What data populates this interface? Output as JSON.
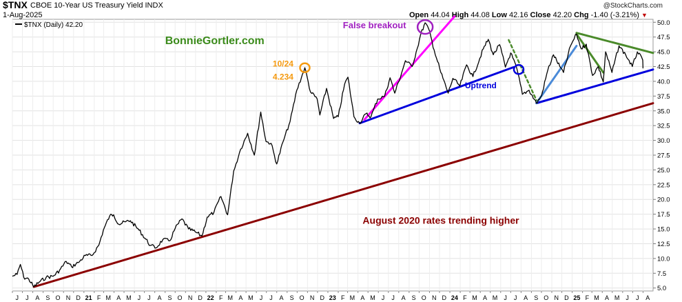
{
  "header": {
    "symbol": "$TNX",
    "description": "CBOE 10-Year US Treasury Yield INDX",
    "date": "1-Aug-2025",
    "credit": "@StockCharts.com",
    "ohlc": {
      "open_label": "Open",
      "open": "44.04",
      "high_label": "High",
      "high": "44.08",
      "low_label": "Low",
      "low": "42.16",
      "close_label": "Close",
      "close": "42.20",
      "chg_label": "Chg",
      "chg": "-1.40 (-3.21%)"
    }
  },
  "legend": {
    "label": "$TNX (Daily) 42.20"
  },
  "colors": {
    "price": "#000000",
    "red_trend": "#8b0000",
    "blue_trend": "#0000dd",
    "magenta_trend": "#ff00ff",
    "green_trend": "#4a8a2a",
    "light_blue_trend": "#4a8ad8",
    "orange": "#f59a10",
    "purple": "#a020c0",
    "watermark": "#3a8a1a"
  },
  "chart_data": {
    "type": "line",
    "title": "$TNX CBOE 10-Year US Treasury Yield INDX",
    "ylim": [
      4.5,
      50.5
    ],
    "y_ticks": [
      5.0,
      7.5,
      10.0,
      12.5,
      15.0,
      17.5,
      20.0,
      22.5,
      25.0,
      27.5,
      30.0,
      32.5,
      35.0,
      37.5,
      40.0,
      42.5,
      45.0,
      47.5,
      50.0
    ],
    "y_tick_labels": [
      "5.0",
      "7.5",
      "10.0",
      "12.5",
      "15.0",
      "17.5",
      "20.0",
      "22.5",
      "25.0",
      "27.5",
      "30.0",
      "32.5",
      "35.0",
      "37.5",
      "40.0",
      "42.5",
      "45.0",
      "47.5",
      "50.0"
    ],
    "x_tick_labels": [
      "J",
      "J",
      "A",
      "S",
      "O",
      "N",
      "D",
      "21",
      "F",
      "M",
      "A",
      "M",
      "J",
      "J",
      "A",
      "S",
      "O",
      "N",
      "D",
      "22",
      "F",
      "M",
      "A",
      "M",
      "J",
      "J",
      "A",
      "S",
      "O",
      "N",
      "D",
      "23",
      "F",
      "M",
      "A",
      "M",
      "J",
      "J",
      "A",
      "S",
      "O",
      "N",
      "D",
      "24",
      "F",
      "M",
      "A",
      "M",
      "J",
      "J",
      "A",
      "S",
      "O",
      "N",
      "D",
      "25",
      "F",
      "M",
      "A",
      "M",
      "J",
      "J",
      "A"
    ],
    "x_start": "2020-06-01",
    "x_end": "2025-08-31",
    "series": [
      {
        "name": "$TNX (Daily)",
        "points": [
          [
            "2020-06-01",
            7.0
          ],
          [
            "2020-06-15",
            7.3
          ],
          [
            "2020-06-25",
            9.0
          ],
          [
            "2020-07-05",
            6.8
          ],
          [
            "2020-07-20",
            6.5
          ],
          [
            "2020-08-04",
            5.2
          ],
          [
            "2020-08-20",
            6.0
          ],
          [
            "2020-09-10",
            6.8
          ],
          [
            "2020-10-01",
            7.0
          ],
          [
            "2020-10-20",
            8.0
          ],
          [
            "2020-11-09",
            9.5
          ],
          [
            "2020-11-25",
            8.6
          ],
          [
            "2020-12-15",
            9.3
          ],
          [
            "2021-01-05",
            10.5
          ],
          [
            "2021-01-25",
            10.5
          ],
          [
            "2021-02-15",
            12.3
          ],
          [
            "2021-02-28",
            14.8
          ],
          [
            "2021-03-19",
            17.2
          ],
          [
            "2021-03-31",
            17.4
          ],
          [
            "2021-04-15",
            15.8
          ],
          [
            "2021-05-05",
            16.2
          ],
          [
            "2021-05-20",
            16.4
          ],
          [
            "2021-06-15",
            14.8
          ],
          [
            "2021-07-19",
            12.2
          ],
          [
            "2021-08-05",
            11.8
          ],
          [
            "2021-08-25",
            13.2
          ],
          [
            "2021-09-15",
            13.0
          ],
          [
            "2021-10-01",
            15.1
          ],
          [
            "2021-10-21",
            16.7
          ],
          [
            "2021-11-10",
            15.0
          ],
          [
            "2021-11-30",
            14.5
          ],
          [
            "2021-12-20",
            13.8
          ],
          [
            "2022-01-05",
            17.0
          ],
          [
            "2022-01-25",
            17.8
          ],
          [
            "2022-02-15",
            20.5
          ],
          [
            "2022-03-07",
            17.4
          ],
          [
            "2022-03-25",
            24.8
          ],
          [
            "2022-04-15",
            28.5
          ],
          [
            "2022-05-06",
            31.2
          ],
          [
            "2022-05-26",
            27.5
          ],
          [
            "2022-06-14",
            34.8
          ],
          [
            "2022-06-30",
            29.8
          ],
          [
            "2022-07-15",
            29.5
          ],
          [
            "2022-08-01",
            26.0
          ],
          [
            "2022-08-20",
            29.8
          ],
          [
            "2022-09-10",
            33.2
          ],
          [
            "2022-09-30",
            38.5
          ],
          [
            "2022-10-24",
            42.3
          ],
          [
            "2022-11-10",
            38.2
          ],
          [
            "2022-11-30",
            37.0
          ],
          [
            "2022-12-08",
            34.3
          ],
          [
            "2022-12-28",
            38.8
          ],
          [
            "2023-01-18",
            33.7
          ],
          [
            "2023-02-01",
            34.0
          ],
          [
            "2023-02-20",
            39.5
          ],
          [
            "2023-03-02",
            40.7
          ],
          [
            "2023-03-20",
            34.0
          ],
          [
            "2023-04-06",
            32.9
          ],
          [
            "2023-04-25",
            34.5
          ],
          [
            "2023-05-10",
            34.0
          ],
          [
            "2023-05-30",
            37.0
          ],
          [
            "2023-06-20",
            37.5
          ],
          [
            "2023-07-06",
            40.6
          ],
          [
            "2023-07-20",
            38.0
          ],
          [
            "2023-08-10",
            41.5
          ],
          [
            "2023-08-21",
            43.5
          ],
          [
            "2023-09-10",
            42.5
          ],
          [
            "2023-09-25",
            45.5
          ],
          [
            "2023-10-06",
            48.0
          ],
          [
            "2023-10-19",
            49.9
          ],
          [
            "2023-10-30",
            48.8
          ],
          [
            "2023-11-15",
            45.3
          ],
          [
            "2023-12-05",
            41.5
          ],
          [
            "2023-12-27",
            38.0
          ],
          [
            "2024-01-10",
            40.5
          ],
          [
            "2024-01-31",
            39.2
          ],
          [
            "2024-02-20",
            42.8
          ],
          [
            "2024-03-10",
            40.8
          ],
          [
            "2024-04-10",
            45.5
          ],
          [
            "2024-04-25",
            47.1
          ],
          [
            "2024-05-10",
            44.5
          ],
          [
            "2024-05-29",
            46.2
          ],
          [
            "2024-06-15",
            42.4
          ],
          [
            "2024-07-01",
            44.8
          ],
          [
            "2024-07-20",
            42.0
          ],
          [
            "2024-08-05",
            37.8
          ],
          [
            "2024-08-25",
            38.5
          ],
          [
            "2024-09-16",
            36.3
          ],
          [
            "2024-10-01",
            37.5
          ],
          [
            "2024-10-20",
            41.9
          ],
          [
            "2024-11-06",
            44.5
          ],
          [
            "2024-11-25",
            42.5
          ],
          [
            "2024-12-06",
            41.5
          ],
          [
            "2024-12-27",
            46.0
          ],
          [
            "2025-01-14",
            48.0
          ],
          [
            "2025-01-28",
            45.5
          ],
          [
            "2025-02-12",
            46.3
          ],
          [
            "2025-03-03",
            41.0
          ],
          [
            "2025-03-20",
            42.5
          ],
          [
            "2025-04-04",
            39.9
          ],
          [
            "2025-04-11",
            45.0
          ],
          [
            "2025-04-30",
            41.5
          ],
          [
            "2025-05-21",
            46.0
          ],
          [
            "2025-06-10",
            44.5
          ],
          [
            "2025-06-30",
            42.5
          ],
          [
            "2025-07-15",
            45.0
          ],
          [
            "2025-07-31",
            43.6
          ],
          [
            "2025-08-01",
            42.2
          ]
        ]
      }
    ],
    "trendlines": [
      {
        "name": "august-2020-uptrend",
        "color": "#8b0000",
        "start": [
          "2020-08-04",
          5.2
        ],
        "end": [
          "2025-08-31",
          36.3
        ]
      },
      {
        "name": "uptrend-2023",
        "color": "#0000dd",
        "start": [
          "2023-04-06",
          32.9
        ],
        "end": [
          "2024-07-10",
          42.4
        ]
      },
      {
        "name": "uptrend-2024",
        "color": "#0000dd",
        "start": [
          "2024-09-16",
          36.3
        ],
        "end": [
          "2025-08-31",
          42.0
        ]
      },
      {
        "name": "false-breakout-line",
        "color": "#ff00ff",
        "start": [
          "2023-04-20",
          33.5
        ],
        "end": [
          "2024-01-15",
          51.0
        ]
      },
      {
        "name": "green-resistance",
        "color": "#4a8a2a",
        "start": [
          "2025-01-14",
          48.2
        ],
        "end": [
          "2025-08-31",
          44.8
        ]
      },
      {
        "name": "green-channel",
        "color": "#4a8a2a",
        "start": [
          "2025-01-14",
          48.0
        ],
        "end": [
          "2025-04-04",
          41.5
        ]
      },
      {
        "name": "light-blue-rise",
        "color": "#4a8ad8",
        "start": [
          "2024-09-16",
          36.3
        ],
        "end": [
          "2025-01-14",
          46.0
        ]
      },
      {
        "name": "green-dotted",
        "color": "#4a8a2a",
        "dashed": true,
        "start": [
          "2024-06-25",
          47.0
        ],
        "end": [
          "2024-09-16",
          36.8
        ]
      }
    ],
    "circles": [
      {
        "name": "10-24-peak-circle",
        "color": "#f59a10",
        "at": [
          "2022-10-24",
          42.3
        ]
      },
      {
        "name": "false-breakout-circle",
        "color": "#a020c0",
        "at": [
          "2023-10-19",
          49.2
        ]
      },
      {
        "name": "uptrend-break-circle",
        "color": "#0000dd",
        "at": [
          "2024-07-25",
          42.0
        ]
      }
    ],
    "annotations": [
      {
        "name": "watermark",
        "text": "BonnieGortler.com",
        "color": "#3a8a1a",
        "at": [
          "2021-09-01",
          46.3
        ]
      },
      {
        "name": "peak-date-label",
        "text": "10/24",
        "color": "#f59a10",
        "at": [
          "2022-07-20",
          42.5
        ]
      },
      {
        "name": "peak-value-label",
        "text": "4.234",
        "color": "#f59a10",
        "at": [
          "2022-07-20",
          40.3
        ]
      },
      {
        "name": "false-breakout-label",
        "text": "False breakout",
        "color": "#a020c0",
        "at": [
          "2023-02-15",
          49.0
        ]
      },
      {
        "name": "uptrend-label",
        "text": "Uptrend",
        "color": "#0000dd",
        "at": [
          "2024-02-15",
          38.8
        ]
      },
      {
        "name": "trend-note",
        "text": "August 2020 rates trending higher",
        "color": "#8b0000",
        "at": [
          "2023-04-15",
          15.9
        ]
      }
    ]
  }
}
